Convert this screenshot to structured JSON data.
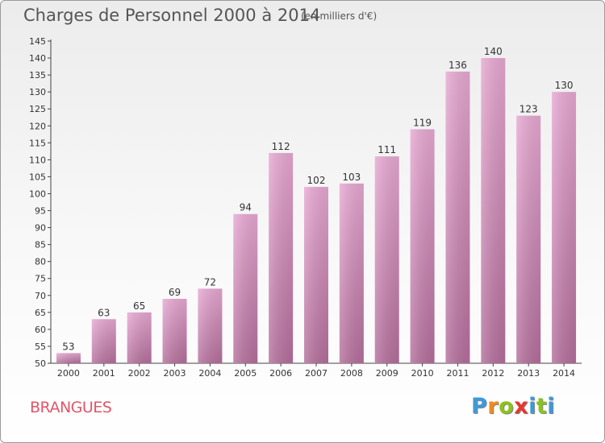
{
  "header": {
    "title": "Charges de Personnel 2000 à 2014",
    "subtitle": "(en milliers d'€)"
  },
  "footer": {
    "commune": "BRANGUES",
    "brand": "Proxiti"
  },
  "colors": {
    "bar_top": "#e8a9d3",
    "bar_bottom": "#b56f9c",
    "commune_text": "#e0566a",
    "brand_letters": [
      "#3c9ad8",
      "#f08a1c",
      "#8cc21c",
      "#e8352e",
      "#3c9ad8",
      "#8cc21c",
      "#3c9ad8"
    ]
  },
  "chart_data": {
    "type": "bar",
    "title": "Charges de Personnel 2000 à 2014",
    "subtitle": "(en milliers d'€)",
    "categories": [
      "2000",
      "2001",
      "2002",
      "2003",
      "2004",
      "2005",
      "2006",
      "2007",
      "2008",
      "2009",
      "2010",
      "2011",
      "2012",
      "2013",
      "2014"
    ],
    "values": [
      53,
      63,
      65,
      69,
      72,
      94,
      112,
      102,
      103,
      111,
      119,
      136,
      140,
      123,
      130
    ],
    "ylim": [
      50,
      145
    ],
    "yticks": [
      50,
      55,
      60,
      65,
      70,
      75,
      80,
      85,
      90,
      95,
      100,
      105,
      110,
      115,
      120,
      125,
      130,
      135,
      140,
      145
    ],
    "grid": false,
    "data_labels": true
  }
}
